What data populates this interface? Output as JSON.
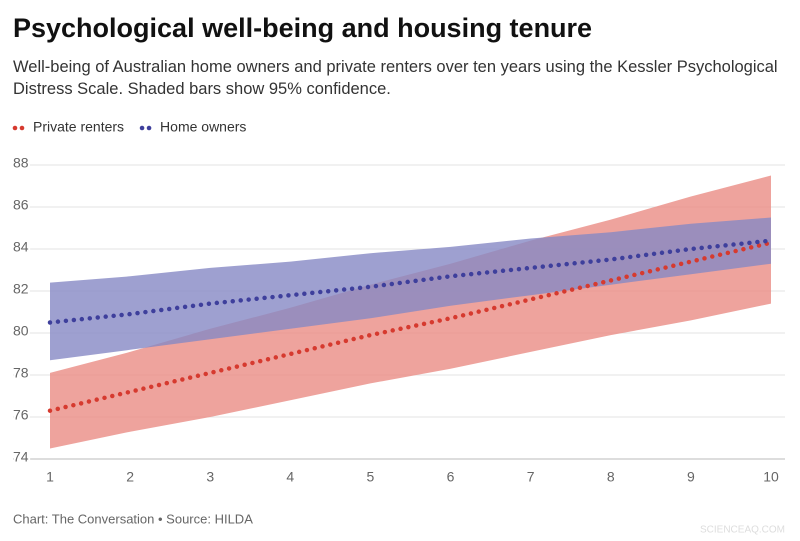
{
  "chart_data": {
    "type": "line",
    "title": "Psychological well-being and housing tenure",
    "subtitle": "Well-being of Australian home owners and private renters over ten years using the Kessler Psychological Distress Scale. Shaded bars show 95% confidence.",
    "source": "Chart: The Conversation • Source: HILDA",
    "watermark": "SCIENCEAQ.COM",
    "x": [
      1,
      2,
      3,
      4,
      5,
      6,
      7,
      8,
      9,
      10
    ],
    "xlim": [
      1,
      10
    ],
    "xticks": [
      1,
      2,
      3,
      4,
      5,
      6,
      7,
      8,
      9,
      10
    ],
    "ylim": [
      74,
      88
    ],
    "yticks": [
      74,
      76,
      78,
      80,
      82,
      84,
      86,
      88
    ],
    "grid": true,
    "legend": "top-left",
    "series": [
      {
        "name": "Private renters",
        "color": "#d63a2f",
        "band_color": "#ea8c85",
        "values": [
          76.3,
          77.2,
          78.1,
          79.0,
          79.9,
          80.7,
          81.6,
          82.5,
          83.4,
          84.3
        ],
        "lower": [
          74.5,
          75.3,
          76.0,
          76.8,
          77.6,
          78.3,
          79.1,
          79.9,
          80.6,
          81.4
        ],
        "upper": [
          78.1,
          79.1,
          80.2,
          81.2,
          82.3,
          83.3,
          84.4,
          85.4,
          86.5,
          87.5
        ]
      },
      {
        "name": "Home owners",
        "color": "#3e3f9c",
        "band_color": "#8688c4",
        "values": [
          80.5,
          80.9,
          81.4,
          81.8,
          82.2,
          82.7,
          83.1,
          83.5,
          84.0,
          84.4
        ],
        "lower": [
          78.7,
          79.2,
          79.7,
          80.2,
          80.7,
          81.3,
          81.8,
          82.3,
          82.8,
          83.3
        ],
        "upper": [
          82.4,
          82.7,
          83.1,
          83.4,
          83.8,
          84.1,
          84.5,
          84.8,
          85.2,
          85.5
        ]
      }
    ]
  }
}
